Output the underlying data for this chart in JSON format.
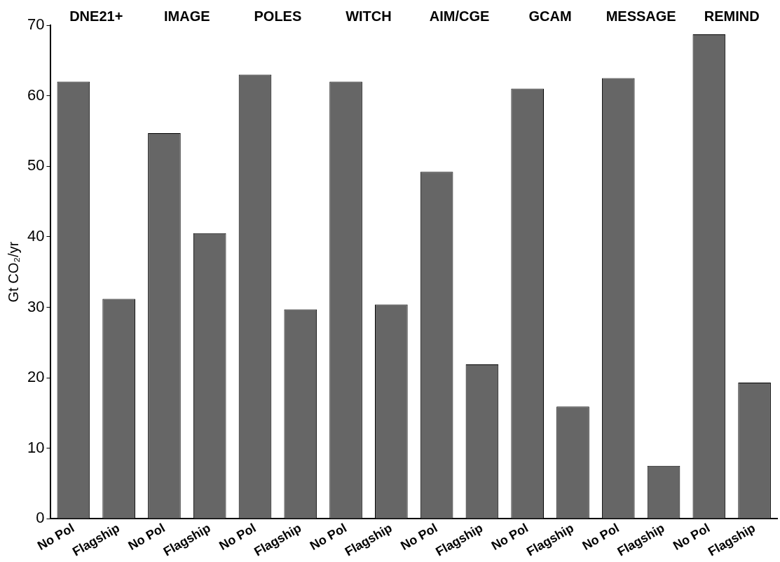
{
  "chart_data": {
    "type": "bar",
    "categories": [
      "No Pol",
      "Flagship",
      "No Pol",
      "Flagship",
      "No Pol",
      "Flagship",
      "No Pol",
      "Flagship",
      "No Pol",
      "Flagship",
      "No Pol",
      "Flagship",
      "No Pol",
      "Flagship",
      "No Pol",
      "Flagship"
    ],
    "values": [
      62,
      31.2,
      54.7,
      40.5,
      63,
      29.7,
      62,
      30.4,
      49.2,
      21.9,
      61,
      15.9,
      62.5,
      7.5,
      68.7,
      19.3
    ],
    "color": "#666666",
    "ylabel": "Gt CO₂/yr",
    "ylim": [
      0,
      70
    ],
    "yticks": [
      0,
      10,
      20,
      30,
      40,
      50,
      60,
      70
    ],
    "grid": false,
    "annotations": [
      "DNE21+",
      "IMAGE",
      "POLES",
      "WITCH",
      "AIM/CGE",
      "GCAM",
      "MESSAGE",
      "REMIND"
    ]
  }
}
